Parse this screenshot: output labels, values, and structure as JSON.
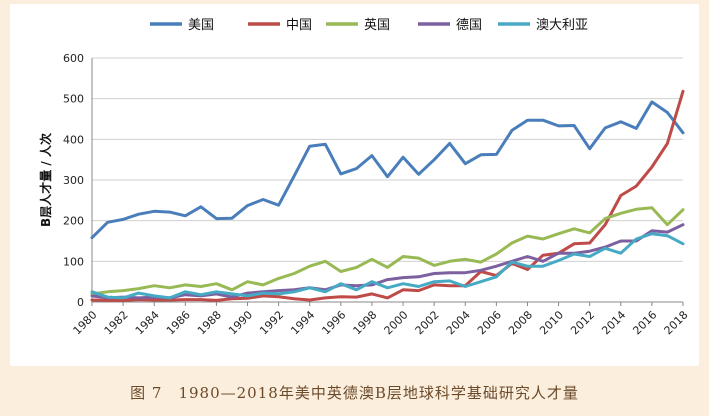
{
  "caption": "图 7　1980—2018年美中英德澳B层地球科学基础研究人才量",
  "chart_data": {
    "type": "line",
    "ylabel": "B层人才量 / 人次",
    "xlabel": "",
    "ylim": [
      0,
      600
    ],
    "yticks": [
      0,
      100,
      200,
      300,
      400,
      500,
      600
    ],
    "xticks": [
      1980,
      1982,
      1984,
      1986,
      1988,
      1990,
      1992,
      1994,
      1996,
      1998,
      2000,
      2002,
      2004,
      2006,
      2008,
      2010,
      2012,
      2014,
      2016,
      2018
    ],
    "grid": "horizontal",
    "legend_position": "top",
    "x": [
      1980,
      1981,
      1982,
      1983,
      1984,
      1985,
      1986,
      1987,
      1988,
      1989,
      1990,
      1991,
      1992,
      1993,
      1994,
      1995,
      1996,
      1997,
      1998,
      1999,
      2000,
      2001,
      2002,
      2003,
      2004,
      2005,
      2006,
      2007,
      2008,
      2009,
      2010,
      2011,
      2012,
      2013,
      2014,
      2015,
      2016,
      2017,
      2018
    ],
    "series": [
      {
        "name": "美国",
        "color": "#4a7ebb",
        "values": [
          158,
          196,
          203,
          216,
          223,
          221,
          212,
          234,
          205,
          206,
          237,
          252,
          238,
          310,
          383,
          388,
          315,
          328,
          360,
          308,
          356,
          314,
          350,
          390,
          340,
          362,
          363,
          422,
          447,
          447,
          433,
          434,
          377,
          428,
          443,
          427,
          492,
          466,
          416
        ]
      },
      {
        "name": "中国",
        "color": "#be4b48",
        "values": [
          5,
          4,
          4,
          6,
          5,
          5,
          6,
          6,
          4,
          8,
          9,
          15,
          13,
          8,
          5,
          10,
          13,
          12,
          20,
          10,
          30,
          28,
          42,
          40,
          40,
          75,
          65,
          95,
          80,
          115,
          120,
          143,
          145,
          190,
          262,
          285,
          332,
          390,
          518
        ]
      },
      {
        "name": "英国",
        "color": "#98b954",
        "values": [
          20,
          25,
          28,
          33,
          40,
          35,
          42,
          38,
          45,
          30,
          50,
          42,
          58,
          70,
          88,
          100,
          75,
          85,
          105,
          85,
          112,
          108,
          90,
          100,
          105,
          98,
          118,
          145,
          162,
          155,
          168,
          180,
          170,
          205,
          218,
          228,
          232,
          190,
          227
        ]
      },
      {
        "name": "德国",
        "color": "#7d60a0",
        "values": [
          15,
          10,
          12,
          10,
          12,
          10,
          18,
          15,
          20,
          12,
          22,
          25,
          28,
          30,
          35,
          30,
          42,
          40,
          42,
          55,
          60,
          62,
          70,
          72,
          72,
          78,
          88,
          100,
          112,
          100,
          120,
          120,
          125,
          135,
          150,
          150,
          175,
          172,
          190
        ]
      },
      {
        "name": "澳大利亚",
        "color": "#46aac5",
        "values": [
          25,
          12,
          10,
          22,
          15,
          10,
          25,
          18,
          25,
          20,
          15,
          22,
          20,
          25,
          35,
          25,
          45,
          30,
          50,
          35,
          45,
          38,
          50,
          52,
          38,
          50,
          62,
          98,
          88,
          88,
          102,
          118,
          112,
          132,
          120,
          155,
          168,
          163,
          143
        ]
      }
    ]
  }
}
